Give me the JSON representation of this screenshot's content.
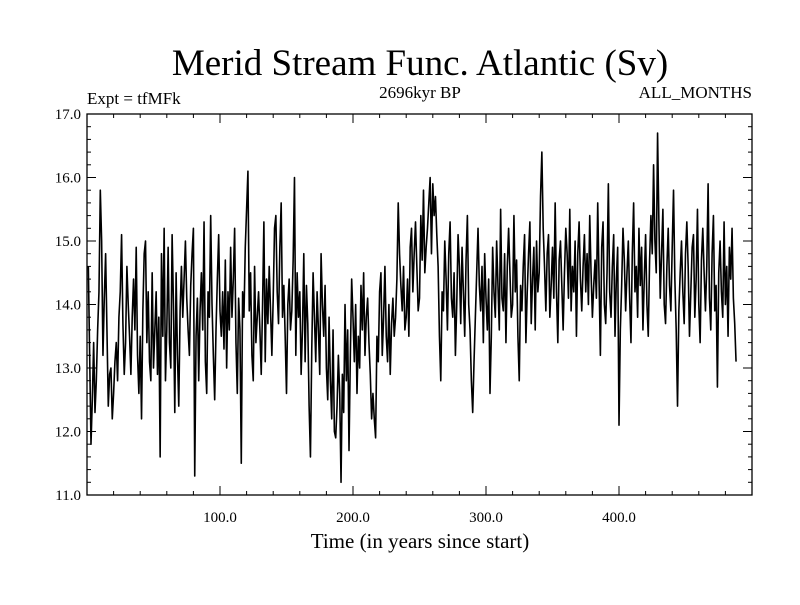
{
  "chart_data": {
    "type": "line",
    "title": "Merid Stream Func. Atlantic (Sv)",
    "left_label": "Expt = tfMFk",
    "center_label": "2696kyr BP",
    "right_label": "ALL_MONTHS",
    "xlabel": "Time (in years since start)",
    "ylabel": "",
    "xlim": [
      0,
      500
    ],
    "ylim": [
      11.0,
      17.0
    ],
    "xticks": [
      {
        "value": 100,
        "label": "100.0"
      },
      {
        "value": 200,
        "label": "200.0"
      },
      {
        "value": 300,
        "label": "300.0"
      },
      {
        "value": 400,
        "label": "400.0"
      }
    ],
    "yticks": [
      {
        "value": 11.0,
        "label": "11.0"
      },
      {
        "value": 12.0,
        "label": "12.0"
      },
      {
        "value": 13.0,
        "label": "13.0"
      },
      {
        "value": 14.0,
        "label": "14.0"
      },
      {
        "value": 15.0,
        "label": "15.0"
      },
      {
        "value": 16.0,
        "label": "16.0"
      },
      {
        "value": 17.0,
        "label": "17.0"
      }
    ],
    "series": [
      {
        "name": "tfMFk",
        "color": "#000000",
        "x_start": 1,
        "x_step": 1,
        "values": [
          14.6,
          13.2,
          11.8,
          12.5,
          13.4,
          12.3,
          12.8,
          13.6,
          14.2,
          15.8,
          15.0,
          13.2,
          14.1,
          14.8,
          13.6,
          12.4,
          12.9,
          13.0,
          12.2,
          12.6,
          13.1,
          13.4,
          12.8,
          13.8,
          14.2,
          15.1,
          13.7,
          12.9,
          13.4,
          14.6,
          14.0,
          13.5,
          12.9,
          13.8,
          14.4,
          13.6,
          14.9,
          13.2,
          12.6,
          13.5,
          12.2,
          13.9,
          14.8,
          15.0,
          13.4,
          14.2,
          13.1,
          12.8,
          14.5,
          13.0,
          13.6,
          14.2,
          12.9,
          13.8,
          11.6,
          14.8,
          13.5,
          15.2,
          12.8,
          13.6,
          14.9,
          13.4,
          13.0,
          15.1,
          14.0,
          12.3,
          14.5,
          13.2,
          12.4,
          13.9,
          14.6,
          13.8,
          14.4,
          15.0,
          14.1,
          13.6,
          13.2,
          14.3,
          14.8,
          15.2,
          11.3,
          13.5,
          14.1,
          12.8,
          13.9,
          14.5,
          13.6,
          15.3,
          13.1,
          12.6,
          14.2,
          13.8,
          15.4,
          14.0,
          13.2,
          12.5,
          13.6,
          14.4,
          15.1,
          13.9,
          13.5,
          14.2,
          13.3,
          14.7,
          13.0,
          14.2,
          13.6,
          14.9,
          13.8,
          14.4,
          15.2,
          13.4,
          12.6,
          14.1,
          13.6,
          11.5,
          14.2,
          13.8,
          14.9,
          15.5,
          16.1,
          13.9,
          14.5,
          13.2,
          12.8,
          14.6,
          13.4,
          13.8,
          14.2,
          13.6,
          12.9,
          14.0,
          15.3,
          13.1,
          14.4,
          13.7,
          14.6,
          13.9,
          13.2,
          14.1,
          15.2,
          15.4,
          14.2,
          13.7,
          14.9,
          15.6,
          13.8,
          14.3,
          13.5,
          12.6,
          14.0,
          14.4,
          13.6,
          13.9,
          14.7,
          16.0,
          13.2,
          14.5,
          13.8,
          14.2,
          12.9,
          13.6,
          14.8,
          13.1,
          14.3,
          13.7,
          12.4,
          11.6,
          13.3,
          14.5,
          13.8,
          13.1,
          14.2,
          13.6,
          12.9,
          14.8,
          14.0,
          13.5,
          14.3,
          13.0,
          12.5,
          13.8,
          12.8,
          12.2,
          13.6,
          12.0,
          11.9,
          12.4,
          13.2,
          12.6,
          11.2,
          12.9,
          12.3,
          14.0,
          12.8,
          13.6,
          11.7,
          13.2,
          14.4,
          13.8,
          13.1,
          14.0,
          12.6,
          13.5,
          13.0,
          14.3,
          13.6,
          14.5,
          13.2,
          13.8,
          14.1,
          13.4,
          12.9,
          12.2,
          12.6,
          12.2,
          11.9,
          13.5,
          13.1,
          14.2,
          14.5,
          13.2,
          13.8,
          14.6,
          13.5,
          13.1,
          14.0,
          12.9,
          13.7,
          14.1,
          13.5,
          13.8,
          14.4,
          15.6,
          14.8,
          14.3,
          13.9,
          14.6,
          13.6,
          13.8,
          14.4,
          13.5,
          14.9,
          15.2,
          14.2,
          14.8,
          15.3,
          14.6,
          13.9,
          14.1,
          15.4,
          14.7,
          15.8,
          14.5,
          14.9,
          15.2,
          15.6,
          16.0,
          14.8,
          15.9,
          15.4,
          15.7,
          15.1,
          14.6,
          13.5,
          12.8,
          14.2,
          13.9,
          15.0,
          14.4,
          13.6,
          14.8,
          15.3,
          14.1,
          13.8,
          14.5,
          13.2,
          14.0,
          15.1,
          14.6,
          13.7,
          14.9,
          14.2,
          13.5,
          14.7,
          15.4,
          14.0,
          13.6,
          12.8,
          12.3,
          13.1,
          13.8,
          14.5,
          15.2,
          14.3,
          13.9,
          14.6,
          13.4,
          14.8,
          14.1,
          13.6,
          14.4,
          12.6,
          13.5,
          14.9,
          14.2,
          13.8,
          15.0,
          14.3,
          13.6,
          15.5,
          14.1,
          13.9,
          14.8,
          13.4,
          14.6,
          15.2,
          14.5,
          13.8,
          14.0,
          15.4,
          14.2,
          14.7,
          13.5,
          12.8,
          14.3,
          13.9,
          14.6,
          15.1,
          13.4,
          14.2,
          14.8,
          15.3,
          13.7,
          14.4,
          14.9,
          13.6,
          15.0,
          14.2,
          14.5,
          15.7,
          16.4,
          15.2,
          14.6,
          13.9,
          14.8,
          15.1,
          13.8,
          14.3,
          14.9,
          14.1,
          15.6,
          14.2,
          13.4,
          14.7,
          15.0,
          14.3,
          13.6,
          14.5,
          15.2,
          14.8,
          14.1,
          15.5,
          13.9,
          14.6,
          14.2,
          15.0,
          13.5,
          14.8,
          15.3,
          14.4,
          13.9,
          14.6,
          15.1,
          14.2,
          14.8,
          14.0,
          15.4,
          14.5,
          13.8,
          14.3,
          14.7,
          14.1,
          15.6,
          14.4,
          13.2,
          14.9,
          15.3,
          14.0,
          13.7,
          14.5,
          15.9,
          14.2,
          13.8,
          14.6,
          15.1,
          13.5,
          14.4,
          14.9,
          12.1,
          13.6,
          14.3,
          15.2,
          14.7,
          13.9,
          14.5,
          15.0,
          14.1,
          13.4,
          14.8,
          15.6,
          14.2,
          14.6,
          13.8,
          15.2,
          14.3,
          14.9,
          13.6,
          14.4,
          15.1,
          14.0,
          13.5,
          14.7,
          15.4,
          14.8,
          16.2,
          15.0,
          14.5,
          16.7,
          15.3,
          14.1,
          14.8,
          15.5,
          14.0,
          13.7,
          14.6,
          15.2,
          14.3,
          13.9,
          14.9,
          15.8,
          14.4,
          13.6,
          12.4,
          13.9,
          14.5,
          15.0,
          14.2,
          13.7,
          14.8,
          15.3,
          14.6,
          13.5,
          14.2,
          14.9,
          15.1,
          13.8,
          14.4,
          15.5,
          14.0,
          13.4,
          14.7,
          15.2,
          14.5,
          13.9,
          14.6,
          15.9,
          14.1,
          13.6,
          14.8,
          15.4,
          13.9,
          14.3,
          12.7,
          14.5,
          15.0,
          14.2,
          13.8,
          15.3,
          14.0,
          14.6,
          13.5,
          14.9,
          14.4,
          15.2,
          14.1,
          13.7,
          13.1
        ]
      }
    ],
    "grid": false,
    "legend": "none"
  }
}
